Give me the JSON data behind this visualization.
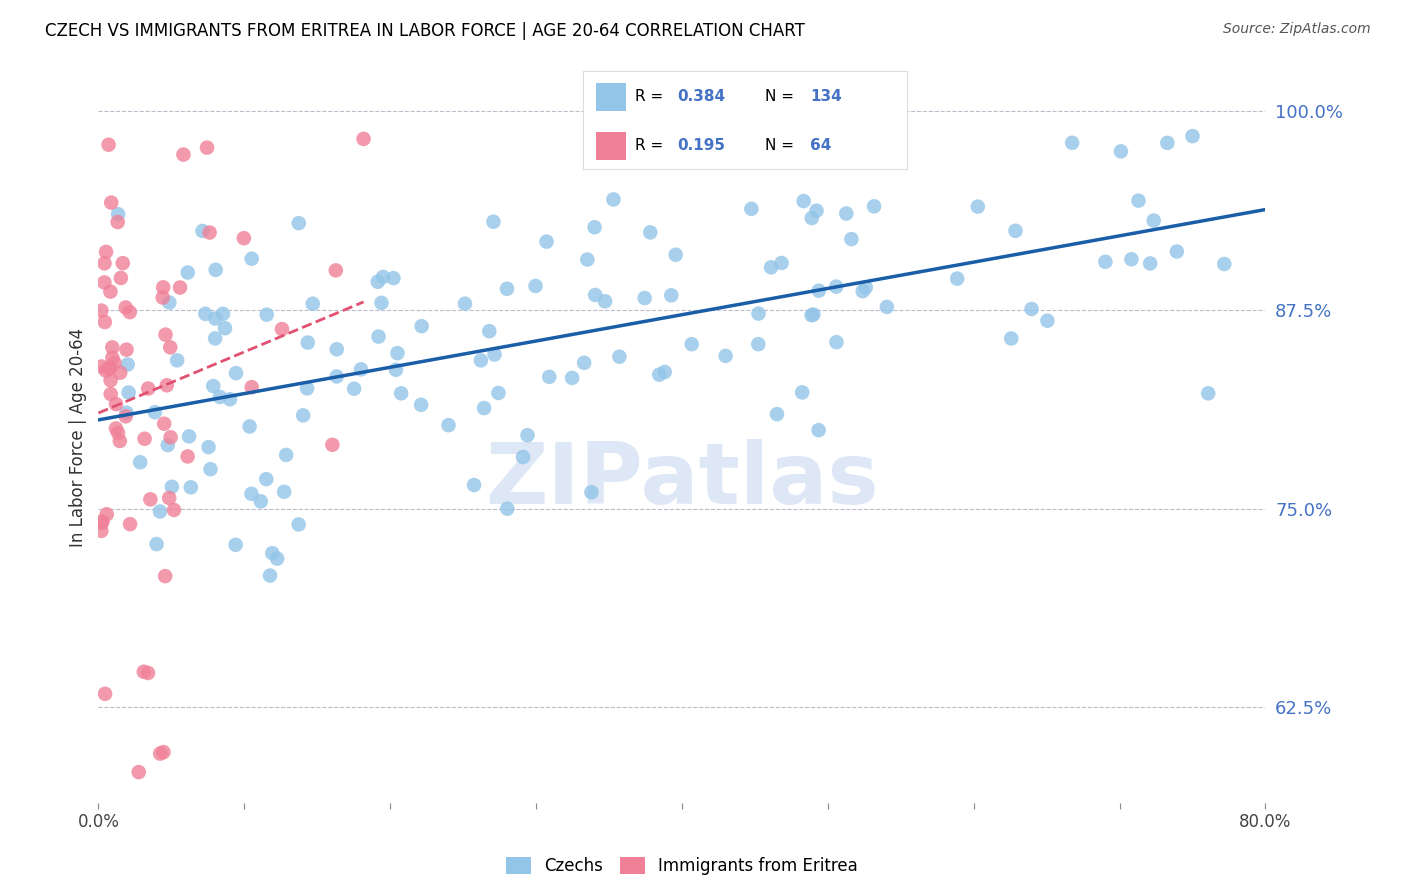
{
  "title": "CZECH VS IMMIGRANTS FROM ERITREA IN LABOR FORCE | AGE 20-64 CORRELATION CHART",
  "source": "Source: ZipAtlas.com",
  "ylabel": "In Labor Force | Age 20-64",
  "xmin": 0.0,
  "xmax": 0.8,
  "ymin": 0.565,
  "ymax": 1.025,
  "xticks": [
    0.0,
    0.1,
    0.2,
    0.3,
    0.4,
    0.5,
    0.6,
    0.7,
    0.8
  ],
  "xticklabels": [
    "0.0%",
    "",
    "",
    "",
    "",
    "",
    "",
    "",
    "80.0%"
  ],
  "ytick_right": [
    0.625,
    0.75,
    0.875,
    1.0
  ],
  "ytick_right_labels": [
    "62.5%",
    "75.0%",
    "87.5%",
    "100.0%"
  ],
  "blue_color": "#92C5E8",
  "pink_color": "#F08098",
  "trendline_blue": "#1A5EA8",
  "trendline_pink": "#E05070",
  "legend_R_blue": "0.384",
  "legend_N_blue": "134",
  "legend_R_pink": "0.195",
  "legend_N_pink": "64",
  "watermark": "ZIPatlas",
  "watermark_color": "#C8D8F0",
  "grid_color": "#BBBBCC",
  "value_color": "#4472C4",
  "title_fontsize": 12,
  "source_fontsize": 10,
  "blue_intercept": 0.82,
  "blue_slope": 0.125,
  "pink_intercept": 0.84,
  "pink_slope": 0.25
}
